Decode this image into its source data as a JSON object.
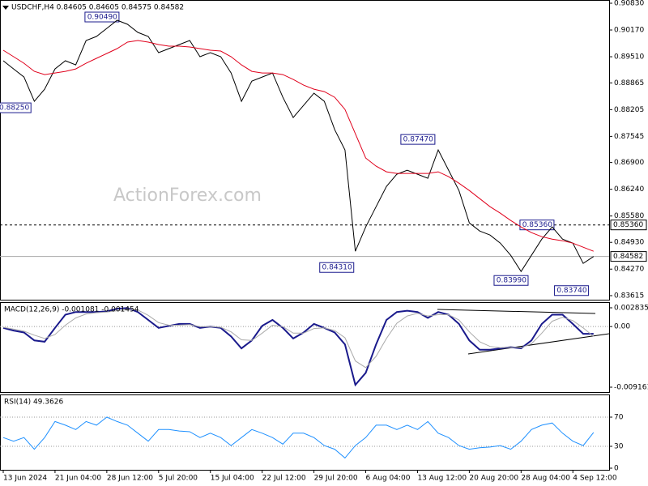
{
  "chart_data": [
    {
      "type": "line",
      "title": "USDCHF,H4  0.84605 0.84605 0.84575 0.84582",
      "watermark": "ActionForex.com",
      "x": [
        0,
        6,
        12,
        18,
        24,
        30,
        36,
        42,
        48,
        54,
        60,
        66,
        72,
        78,
        84,
        90,
        96,
        102,
        108,
        114,
        120,
        126,
        132,
        138,
        144,
        150,
        156,
        162,
        168,
        174,
        180,
        186,
        192,
        198,
        204,
        210,
        216,
        222,
        228,
        234,
        240,
        246,
        252,
        258,
        264,
        270,
        276,
        282,
        288,
        294,
        300,
        306,
        312,
        318,
        324,
        330,
        336,
        342
      ],
      "xlim": [
        0,
        351
      ],
      "series": [
        {
          "name": "Price",
          "color": "#000000",
          "values": [
            0.8941,
            0.8921,
            0.8901,
            0.8841,
            0.8871,
            0.8921,
            0.8941,
            0.8931,
            0.8991,
            0.9001,
            0.9021,
            0.9041,
            0.9031,
            0.9011,
            0.9001,
            0.8961,
            0.8971,
            0.8981,
            0.8991,
            0.8951,
            0.8961,
            0.8951,
            0.8911,
            0.8841,
            0.8891,
            0.8901,
            0.8911,
            0.8851,
            0.8801,
            0.8831,
            0.8861,
            0.8841,
            0.8771,
            0.8721,
            0.8471,
            0.8531,
            0.8581,
            0.8631,
            0.8661,
            0.8671,
            0.8661,
            0.8651,
            0.8721,
            0.8671,
            0.8621,
            0.8541,
            0.8521,
            0.8511,
            0.8491,
            0.8461,
            0.8421,
            0.8461,
            0.8501,
            0.8531,
            0.8501,
            0.8491,
            0.8441,
            0.8458
          ]
        },
        {
          "name": "MA",
          "color": "#e0001b",
          "values": [
            0.8967,
            0.8951,
            0.8935,
            0.8915,
            0.8907,
            0.8911,
            0.8915,
            0.8921,
            0.8935,
            0.8947,
            0.8959,
            0.8971,
            0.8987,
            0.8991,
            0.8987,
            0.8981,
            0.8977,
            0.8977,
            0.8975,
            0.8971,
            0.8967,
            0.8965,
            0.8951,
            0.8931,
            0.8915,
            0.8911,
            0.8911,
            0.8907,
            0.8895,
            0.8881,
            0.8871,
            0.8865,
            0.8851,
            0.8821,
            0.8761,
            0.8701,
            0.8681,
            0.8667,
            0.8663,
            0.8663,
            0.8663,
            0.8663,
            0.8667,
            0.8655,
            0.8639,
            0.8621,
            0.8601,
            0.8581,
            0.8565,
            0.8547,
            0.8531,
            0.8517,
            0.8507,
            0.8501,
            0.8497,
            0.8491,
            0.8481,
            0.8471
          ]
        }
      ],
      "ylim": [
        0.83615,
        0.9083
      ],
      "yticks": [
        {
          "value": 0.9083,
          "label": "0.90830"
        },
        {
          "value": 0.9017,
          "label": "0.90170"
        },
        {
          "value": 0.8951,
          "label": "0.89510"
        },
        0.88865,
        0.88205,
        0.87545,
        {
          "value": 0.869,
          "label": "0.86900"
        },
        {
          "value": 0.8624,
          "label": "0.86240"
        },
        {
          "value": 0.8558,
          "label": "0.85580"
        },
        {
          "value": 0.8493,
          "label": "0.84930"
        },
        {
          "value": 0.8427,
          "label": "0.84270"
        },
        0.83615
      ],
      "price_labels": [
        {
          "value": 0.8536,
          "label": "0.85360",
          "line": "dashed"
        },
        {
          "value": 0.84582,
          "label": "0.84582",
          "line": "solid"
        }
      ],
      "annotations": [
        {
          "x": 68,
          "value": 0.9049,
          "label": "0.90490"
        },
        {
          "x": 17,
          "value": 0.8825,
          "label": "0.88250"
        },
        {
          "x": 251,
          "value": 0.8747,
          "label": "0.87470"
        },
        {
          "x": 204,
          "value": 0.8431,
          "label": "0.84310"
        },
        {
          "x": 320,
          "value": 0.8536,
          "label": "0.85360"
        },
        {
          "x": 305,
          "value": 0.8399,
          "label": "0.83990"
        },
        {
          "x": 340,
          "value": 0.8374,
          "label": "0.83740"
        }
      ]
    },
    {
      "type": "line",
      "title": "MACD(12,26,9) -0.001081 -0.001454",
      "x": [
        0,
        6,
        12,
        18,
        24,
        30,
        36,
        42,
        48,
        54,
        60,
        66,
        72,
        78,
        84,
        90,
        96,
        102,
        108,
        114,
        120,
        126,
        132,
        138,
        144,
        150,
        156,
        162,
        168,
        174,
        180,
        186,
        192,
        198,
        204,
        210,
        216,
        222,
        228,
        234,
        240,
        246,
        252,
        258,
        264,
        270,
        276,
        282,
        288,
        294,
        300,
        306,
        312,
        318,
        324,
        330,
        336,
        342
      ],
      "xlim": [
        0,
        351
      ],
      "series": [
        {
          "name": "MACD",
          "color": "#1a1a8c",
          "values": [
            -0.0002,
            -0.0006,
            -0.0009,
            -0.0021,
            -0.0023,
            -0.0002,
            0.0018,
            0.0022,
            0.0022,
            0.0022,
            0.0023,
            0.0027,
            0.0028,
            0.0022,
            0.001,
            -0.0002,
            0.0001,
            0.0004,
            0.0004,
            -0.0002,
            0,
            -0.0002,
            -0.0015,
            -0.0033,
            -0.0021,
            0.0001,
            0.001,
            -0.0002,
            -0.0018,
            -0.0009,
            0.0004,
            -0.0002,
            -0.0009,
            -0.0027,
            -0.0088,
            -0.007,
            -0.0027,
            0.001,
            0.0022,
            0.0024,
            0.0022,
            0.0013,
            0.0022,
            0.0018,
            0.0004,
            -0.0021,
            -0.0035,
            -0.0035,
            -0.0033,
            -0.0031,
            -0.0033,
            -0.0021,
            0.0004,
            0.0018,
            0.0018,
            0.0004,
            -0.0011,
            -0.0011
          ]
        },
        {
          "name": "Signal",
          "color": "#aaaaaa",
          "values": [
            -0.0001,
            -0.0004,
            -0.0007,
            -0.0013,
            -0.0018,
            -0.0012,
            0.0002,
            0.0013,
            0.0019,
            0.0021,
            0.0022,
            0.0024,
            0.0026,
            0.0025,
            0.0017,
            0.0006,
            0.0002,
            0.0002,
            0.0003,
            0,
            0,
            -0.0001,
            -0.0008,
            -0.002,
            -0.0021,
            -0.001,
            0.0002,
            0,
            -0.001,
            -0.001,
            -0.0003,
            -0.0002,
            -0.0006,
            -0.0017,
            -0.0052,
            -0.0062,
            -0.0045,
            -0.0018,
            0.0005,
            0.0016,
            0.002,
            0.0016,
            0.0018,
            0.0018,
            0.001,
            -0.0008,
            -0.0023,
            -0.003,
            -0.0032,
            -0.0031,
            -0.0032,
            -0.0026,
            -0.001,
            0.0008,
            0.0014,
            0.0009,
            -0.0002,
            -0.0015
          ]
        }
      ],
      "ylim": [
        -0.009161,
        0.002835
      ],
      "yticks": [
        0.002835,
        {
          "value": 0,
          "label": "0.00"
        },
        -0.009161
      ],
      "reference_lines": [
        0
      ]
    },
    {
      "type": "line",
      "title": "RSI(14) 49.3626",
      "x": [
        0,
        6,
        12,
        18,
        24,
        30,
        36,
        42,
        48,
        54,
        60,
        66,
        72,
        78,
        84,
        90,
        96,
        102,
        108,
        114,
        120,
        126,
        132,
        138,
        144,
        150,
        156,
        162,
        168,
        174,
        180,
        186,
        192,
        198,
        204,
        210,
        216,
        222,
        228,
        234,
        240,
        246,
        252,
        258,
        264,
        270,
        276,
        282,
        288,
        294,
        300,
        306,
        312,
        318,
        324,
        330,
        336,
        342
      ],
      "xlim": [
        0,
        351
      ],
      "series": [
        {
          "name": "RSI",
          "color": "#1e90ff",
          "values": [
            42,
            37,
            42,
            26,
            42,
            64,
            59,
            53,
            64,
            59,
            70,
            64,
            59,
            48,
            37,
            53,
            53,
            51,
            50,
            42,
            48,
            42,
            31,
            42,
            53,
            48,
            42,
            33,
            48,
            48,
            42,
            31,
            26,
            14,
            31,
            42,
            59,
            59,
            53,
            59,
            53,
            64,
            48,
            42,
            31,
            26,
            28,
            29,
            31,
            26,
            37,
            53,
            59,
            62,
            48,
            37,
            31,
            49
          ]
        }
      ],
      "ylim": [
        0,
        100
      ],
      "yticks": [
        70,
        30,
        0
      ],
      "reference_lines": [
        70,
        30
      ],
      "xticks": [
        {
          "value": 0,
          "label": "13 Jun 2024"
        },
        {
          "value": 30,
          "label": "21 Jun 04:00"
        },
        {
          "value": 60,
          "label": "28 Jun 12:00"
        },
        {
          "value": 90,
          "label": "5 Jul 20:00"
        },
        {
          "value": 120,
          "label": "15 Jul 04:00"
        },
        {
          "value": 150,
          "label": "22 Jul 12:00"
        },
        {
          "value": 180,
          "label": "29 Jul 20:00"
        },
        {
          "value": 210,
          "label": "6 Aug 04:00"
        },
        {
          "value": 240,
          "label": "13 Aug 12:00"
        },
        {
          "value": 270,
          "label": "20 Aug 20:00"
        },
        {
          "value": 300,
          "label": "28 Aug 04:00"
        },
        {
          "value": 330,
          "label": "4 Sep 12:00"
        }
      ]
    }
  ]
}
